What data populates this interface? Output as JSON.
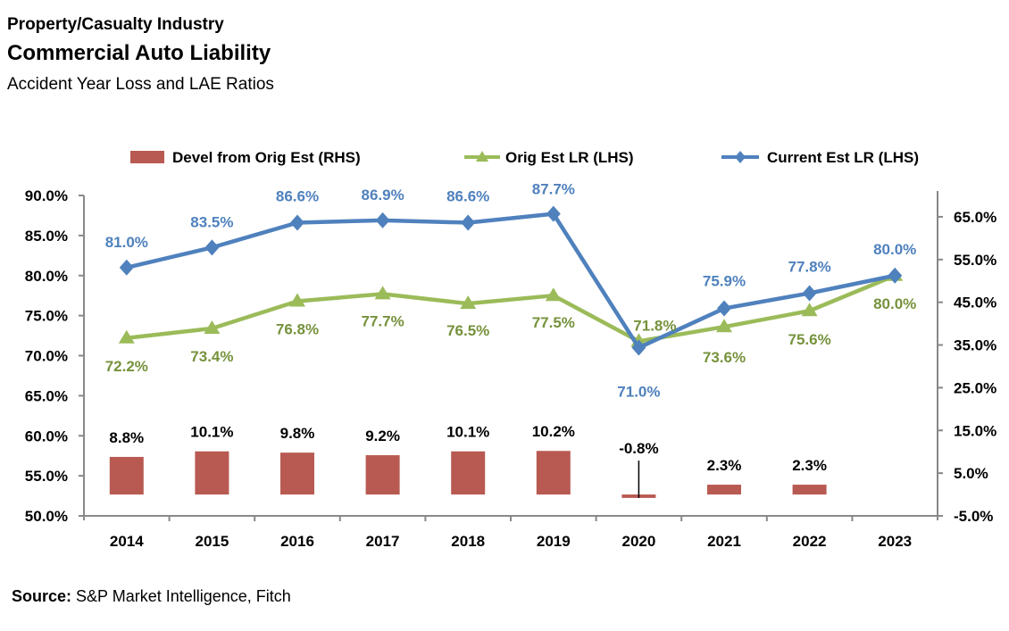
{
  "header": {
    "line1": "Property/Casualty Industry",
    "line2": "Commercial Auto Liability",
    "line3": "Accident Year Loss and LAE Ratios"
  },
  "footer": {
    "source_label": "Source:",
    "source_text": " S&P Market Intelligence, Fitch"
  },
  "colors": {
    "bar": "#B85A52",
    "orig": "#9BBB59",
    "orig_label": "#76923C",
    "current": "#4F81BD",
    "current_label": "#4F81BD",
    "axis": "#888888"
  },
  "chart_data": {
    "type": "bar+line",
    "title": "Commercial Auto Liability",
    "subtitle": "Accident Year Loss and LAE Ratios",
    "categories": [
      "2014",
      "2015",
      "2016",
      "2017",
      "2018",
      "2019",
      "2020",
      "2021",
      "2022",
      "2023"
    ],
    "series": [
      {
        "name": "Devel from Orig Est (RHS)",
        "type": "bar",
        "axis": "right",
        "values": [
          8.8,
          10.1,
          9.8,
          9.2,
          10.1,
          10.2,
          -0.8,
          2.3,
          2.3,
          null
        ],
        "labels": [
          "8.8%",
          "10.1%",
          "9.8%",
          "9.2%",
          "10.1%",
          "10.2%",
          "-0.8%",
          "2.3%",
          "2.3%",
          ""
        ]
      },
      {
        "name": "Orig Est LR (LHS)",
        "type": "line",
        "marker": "triangle",
        "axis": "left",
        "values": [
          72.2,
          73.4,
          76.8,
          77.7,
          76.5,
          77.5,
          71.8,
          73.6,
          75.6,
          80.0
        ],
        "labels": [
          "72.2%",
          "73.4%",
          "76.8%",
          "77.7%",
          "76.5%",
          "77.5%",
          "71.8%",
          "73.6%",
          "75.6%",
          "80.0%"
        ]
      },
      {
        "name": "Current Est LR (LHS)",
        "type": "line",
        "marker": "diamond",
        "axis": "left",
        "values": [
          81.0,
          83.5,
          86.6,
          86.9,
          86.6,
          87.7,
          71.0,
          75.9,
          77.8,
          80.0
        ],
        "labels": [
          "81.0%",
          "83.5%",
          "86.6%",
          "86.9%",
          "86.6%",
          "87.7%",
          "71.0%",
          "75.9%",
          "77.8%",
          "80.0%"
        ]
      }
    ],
    "left_axis": {
      "ylim": [
        50,
        90
      ],
      "ticks": [
        "90.0%",
        "85.0%",
        "80.0%",
        "75.0%",
        "70.0%",
        "65.0%",
        "60.0%",
        "55.0%",
        "50.0%"
      ],
      "tick_values": [
        90,
        85,
        80,
        75,
        70,
        65,
        60,
        55,
        50
      ]
    },
    "right_axis": {
      "ylim": [
        -5,
        70
      ],
      "ticks": [
        "65.0%",
        "55.0%",
        "45.0%",
        "35.0%",
        "25.0%",
        "15.0%",
        "5.0%",
        "-5.0%"
      ],
      "tick_values": [
        65,
        55,
        45,
        35,
        25,
        15,
        5,
        -5
      ]
    },
    "legend_position": "top",
    "grid": false,
    "xlabel": "",
    "ylabel": ""
  }
}
